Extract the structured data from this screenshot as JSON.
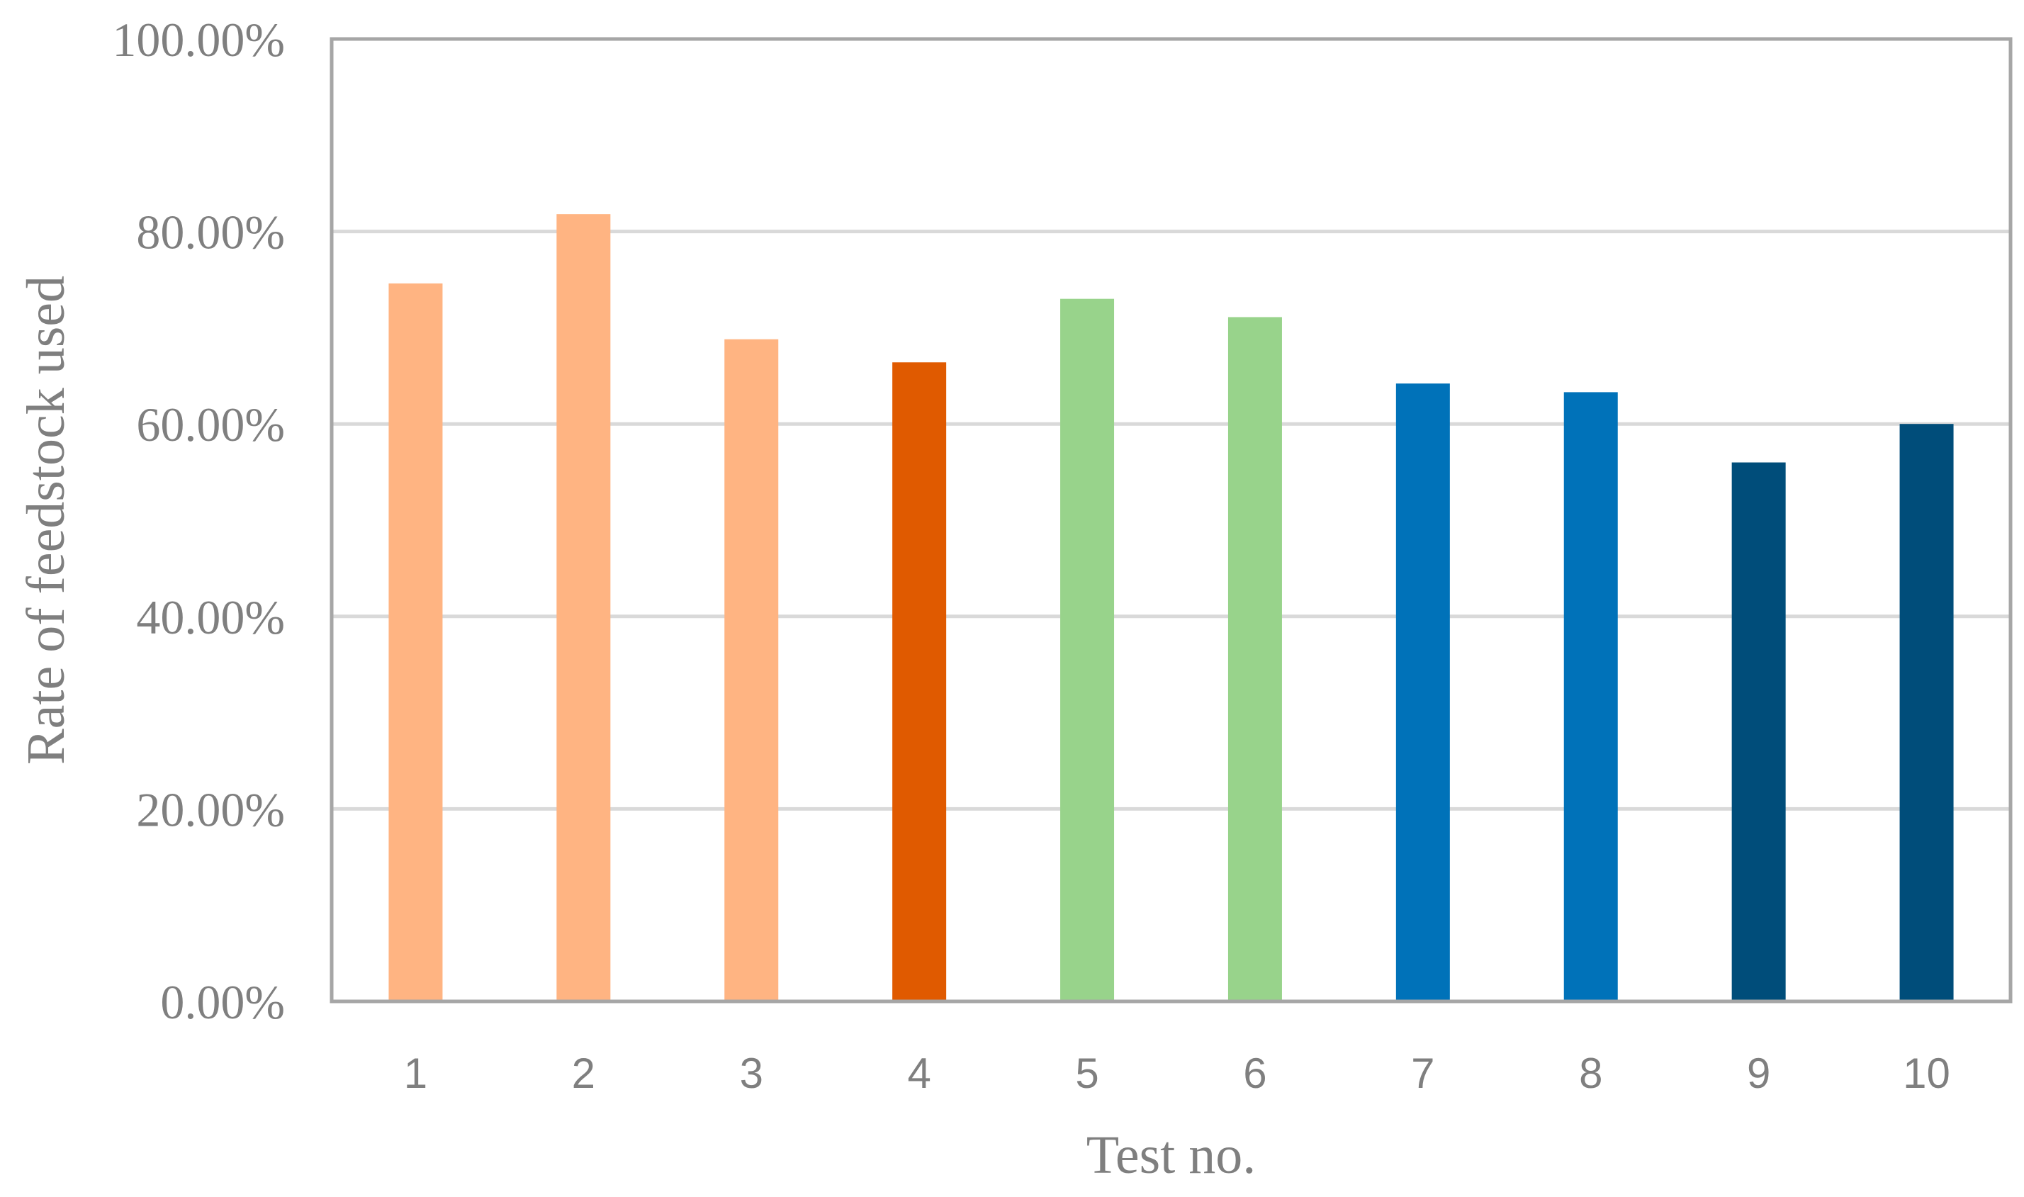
{
  "chart_data": {
    "type": "bar",
    "categories": [
      "1",
      "2",
      "3",
      "4",
      "5",
      "6",
      "7",
      "8",
      "9",
      "10"
    ],
    "values": [
      74.6,
      81.8,
      68.8,
      66.4,
      73.0,
      71.1,
      64.2,
      63.3,
      56.0,
      60.0
    ],
    "colors": [
      "#ffb482",
      "#ffb482",
      "#ffb482",
      "#e05a00",
      "#98d38b",
      "#98d38b",
      "#0072b9",
      "#0072b9",
      "#004d7a",
      "#004d7a"
    ],
    "title": "",
    "xlabel": "Test no.",
    "ylabel": "Rate of feedstock used",
    "ylim": [
      0,
      100
    ],
    "yticks": [
      0,
      20,
      40,
      60,
      80,
      100
    ],
    "ytick_labels": [
      "0.00%",
      "20.00%",
      "40.00%",
      "60.00%",
      "80.00%",
      "100.00%"
    ],
    "grid": true,
    "legend": "none"
  }
}
